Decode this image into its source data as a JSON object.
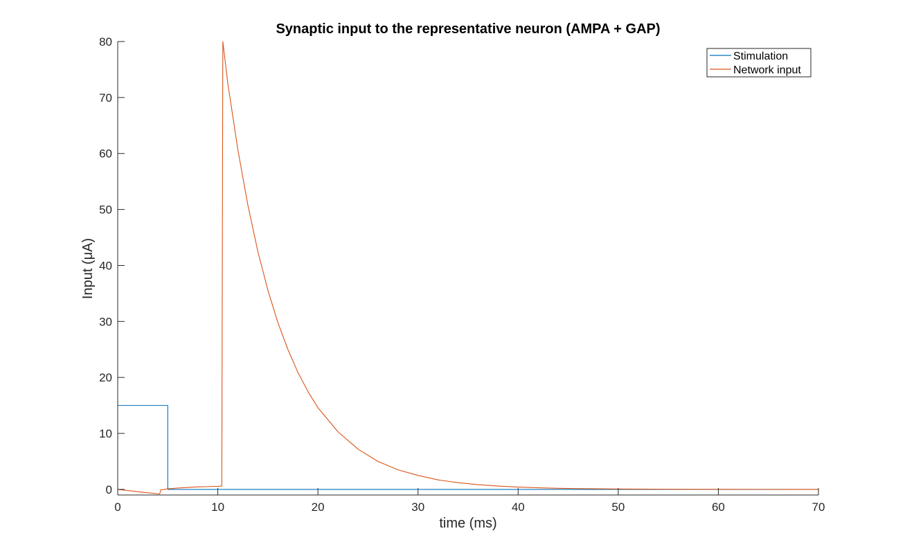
{
  "chart_data": {
    "type": "line",
    "title": "Synaptic input to the representative neuron (AMPA + GAP)",
    "xlabel": "time (ms)",
    "ylabel": "Input (μA)",
    "xlim": [
      0,
      70
    ],
    "ylim": [
      -1,
      80
    ],
    "xticks": [
      0,
      10,
      20,
      30,
      40,
      50,
      60,
      70
    ],
    "yticks": [
      0,
      10,
      20,
      30,
      40,
      50,
      60,
      70,
      80
    ],
    "grid": false,
    "legend_position": "top-right",
    "series": [
      {
        "name": "Stimulation",
        "color": "#0072BD",
        "x": [
          0,
          5,
          5,
          70
        ],
        "y": [
          15,
          15,
          0,
          0
        ]
      },
      {
        "name": "Network input",
        "color": "#D95319",
        "x": [
          0,
          1,
          2,
          3,
          4.2,
          4.3,
          5,
          6,
          7,
          8,
          9,
          10,
          10.4,
          10.5,
          11,
          12,
          13,
          14,
          15,
          16,
          17,
          18,
          19,
          20,
          22,
          24,
          26,
          28,
          30,
          32,
          34,
          36,
          38,
          40,
          42,
          44,
          46,
          48,
          50,
          55,
          60,
          65,
          70
        ],
        "y": [
          0,
          -0.2,
          -0.4,
          -0.6,
          -0.8,
          -0.1,
          0.1,
          0.25,
          0.35,
          0.45,
          0.5,
          0.55,
          0.6,
          80,
          72.5,
          60.7,
          50.8,
          42.5,
          35.6,
          29.8,
          25.0,
          20.9,
          17.5,
          14.6,
          10.3,
          7.2,
          5.0,
          3.5,
          2.5,
          1.7,
          1.2,
          0.85,
          0.6,
          0.42,
          0.29,
          0.2,
          0.14,
          0.1,
          0.07,
          0.03,
          0.01,
          0.005,
          0
        ]
      }
    ]
  }
}
